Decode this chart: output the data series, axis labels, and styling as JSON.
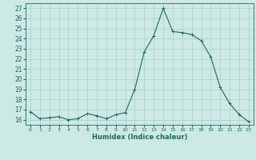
{
  "x": [
    0,
    1,
    2,
    3,
    4,
    5,
    6,
    7,
    8,
    9,
    10,
    11,
    12,
    13,
    14,
    15,
    16,
    17,
    18,
    19,
    20,
    21,
    22,
    23
  ],
  "y": [
    16.8,
    16.1,
    16.2,
    16.3,
    16.0,
    16.1,
    16.6,
    16.4,
    16.1,
    16.5,
    16.7,
    19.0,
    22.7,
    24.3,
    27.0,
    24.7,
    24.6,
    24.4,
    23.8,
    22.2,
    19.2,
    17.6,
    16.5,
    15.8
  ],
  "title": "",
  "xlabel": "Humidex (Indice chaleur)",
  "ylabel": "",
  "ylim": [
    15.5,
    27.5
  ],
  "xlim": [
    -0.5,
    23.5
  ],
  "yticks": [
    16,
    17,
    18,
    19,
    20,
    21,
    22,
    23,
    24,
    25,
    26,
    27
  ],
  "xticks": [
    0,
    1,
    2,
    3,
    4,
    5,
    6,
    7,
    8,
    9,
    10,
    11,
    12,
    13,
    14,
    15,
    16,
    17,
    18,
    19,
    20,
    21,
    22,
    23
  ],
  "line_color": "#1a6b5a",
  "marker": "+",
  "bg_color": "#cce9e5",
  "grid_color": "#aacfcb",
  "xlabel_color": "#1a6b5a",
  "tick_color": "#1a6b5a",
  "spine_color": "#1a6b5a"
}
